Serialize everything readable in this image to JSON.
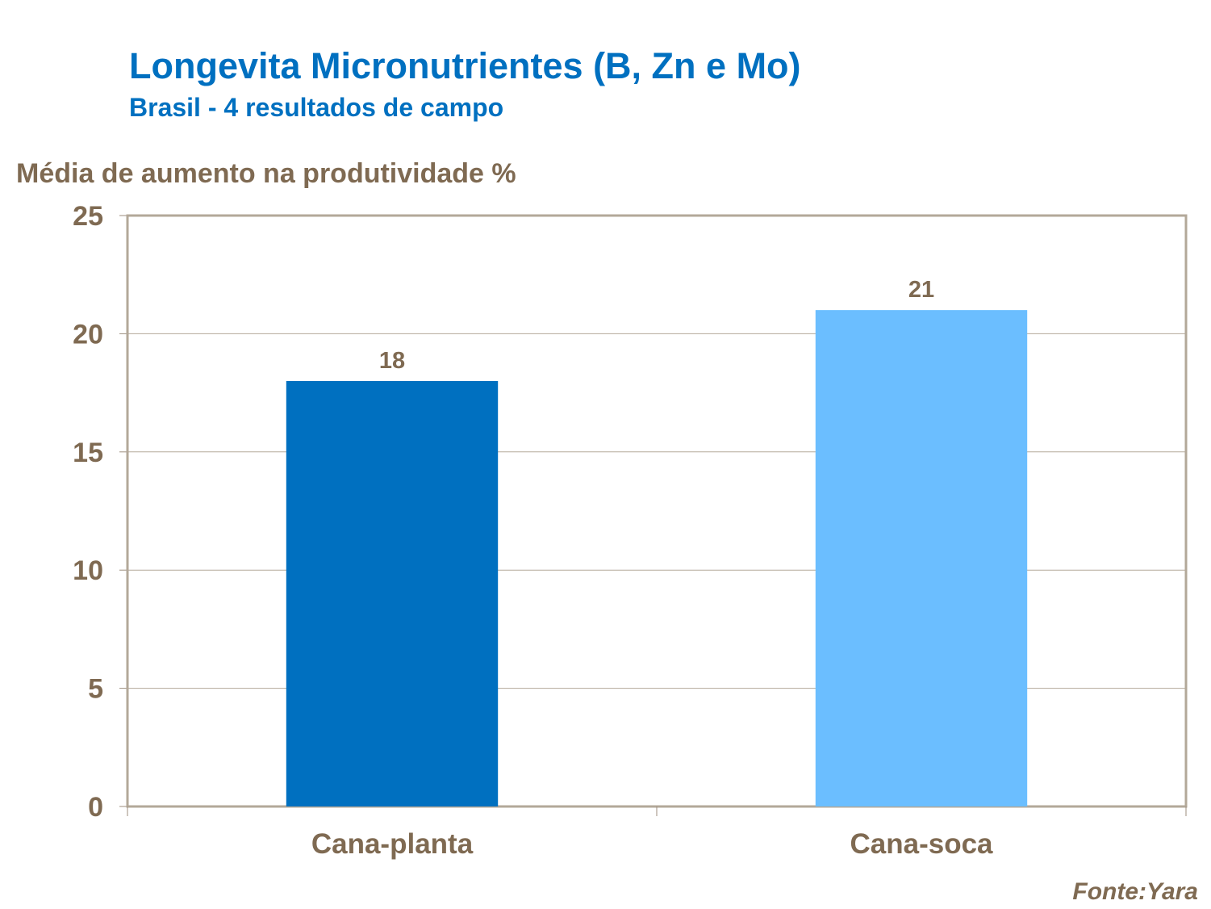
{
  "chart_data": {
    "type": "bar",
    "title": "Longevita Micronutrientes (B, Zn e Mo)",
    "subtitle": "Brasil - 4 resultados de campo",
    "ylabel": "Média de aumento na produtividade %",
    "xlabel": "",
    "categories": [
      "Cana-planta",
      "Cana-soca"
    ],
    "values": [
      18,
      21
    ],
    "data_labels": [
      "18",
      "21"
    ],
    "bar_colors": [
      "#0070C0",
      "#6BBEFF"
    ],
    "ylim": [
      0,
      25
    ],
    "yticks": [
      "0",
      "5",
      "10",
      "15",
      "20",
      "25"
    ],
    "grid": true,
    "legend": "none",
    "source": "Fonte:Yara"
  }
}
